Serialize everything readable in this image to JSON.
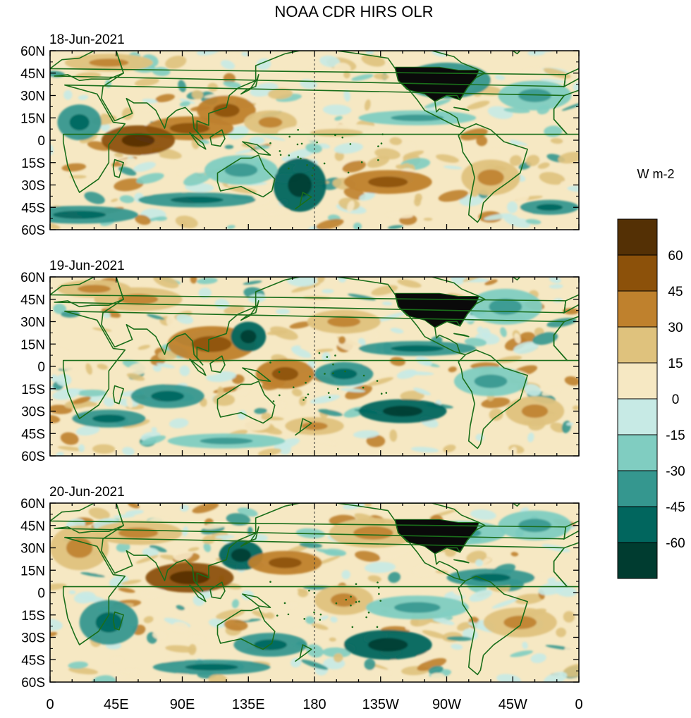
{
  "title": "NOAA CDR HIRS OLR",
  "panels": [
    {
      "date": "18-Jun-2021"
    },
    {
      "date": "19-Jun-2021"
    },
    {
      "date": "20-Jun-2021"
    }
  ],
  "y_ticks": [
    "60N",
    "45N",
    "30N",
    "15N",
    "0",
    "15S",
    "30S",
    "45S",
    "60S"
  ],
  "x_ticks": [
    "0",
    "45E",
    "90E",
    "135E",
    "180",
    "135W",
    "90W",
    "45W",
    "0"
  ],
  "colorbar": {
    "unit": "W m-2",
    "labels": [
      "60",
      "45",
      "30",
      "15",
      "0",
      "-15",
      "-30",
      "-45",
      "-60"
    ],
    "colors": [
      "#543005",
      "#8c510a",
      "#bf812d",
      "#dfc27d",
      "#f6e8c3",
      "#c7eae5",
      "#80cdc1",
      "#35978f",
      "#01665e",
      "#003c30"
    ]
  },
  "colors": {
    "coast": "#1a6e1a",
    "dateline": "#333333",
    "land_mask": "#0a0a0a"
  }
}
